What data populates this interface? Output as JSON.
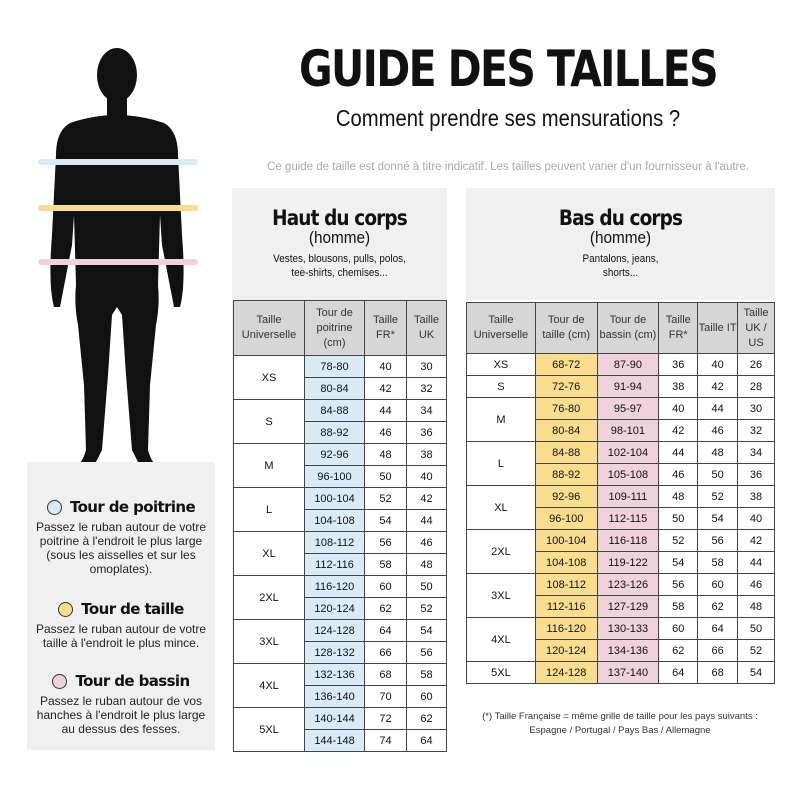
{
  "header": {
    "title": "GUIDE DES TAILLES",
    "subtitle": "Comment prendre ses mensurations ?",
    "note": "Ce guide de taille est donné à titre indicatif. Les tailles peuvent varier d'un fournisseur à l'autre."
  },
  "colors": {
    "poitrine": "#d9ebf6",
    "taille": "#fbdd8e",
    "bassin": "#f0d2dc"
  },
  "measures": [
    {
      "title": "Tour de poitrine",
      "text": "Passez le ruban autour de votre poitrine à l'endroit le plus large (sous les aisselles et sur les omoplates)."
    },
    {
      "title": "Tour de taille",
      "text": "Passez le ruban autour de votre taille à l'endroit le plus mince."
    },
    {
      "title": "Tour de bassin",
      "text": "Passez le ruban autour de vos hanches à l'endroit le plus large au dessus des fesses."
    }
  ],
  "top": {
    "title": "Haut du corps",
    "gender": "(homme)",
    "desc": "Vestes, blousons, pulls, polos, tee-shirts, chemises...",
    "columns": [
      "Taille Universelle",
      "Tour de poitrine (cm)",
      "Taille FR*",
      "Taille UK"
    ],
    "groups": [
      {
        "size": "XS",
        "rows": [
          [
            "78-80",
            "40",
            "30"
          ],
          [
            "80-84",
            "42",
            "32"
          ]
        ]
      },
      {
        "size": "S",
        "rows": [
          [
            "84-88",
            "44",
            "34"
          ],
          [
            "88-92",
            "46",
            "36"
          ]
        ]
      },
      {
        "size": "M",
        "rows": [
          [
            "92-96",
            "48",
            "38"
          ],
          [
            "96-100",
            "50",
            "40"
          ]
        ]
      },
      {
        "size": "L",
        "rows": [
          [
            "100-104",
            "52",
            "42"
          ],
          [
            "104-108",
            "54",
            "44"
          ]
        ]
      },
      {
        "size": "XL",
        "rows": [
          [
            "108-112",
            "56",
            "46"
          ],
          [
            "112-116",
            "58",
            "48"
          ]
        ]
      },
      {
        "size": "2XL",
        "rows": [
          [
            "116-120",
            "60",
            "50"
          ],
          [
            "120-124",
            "62",
            "52"
          ]
        ]
      },
      {
        "size": "3XL",
        "rows": [
          [
            "124-128",
            "64",
            "54"
          ],
          [
            "128-132",
            "66",
            "56"
          ]
        ]
      },
      {
        "size": "4XL",
        "rows": [
          [
            "132-136",
            "68",
            "58"
          ],
          [
            "136-140",
            "70",
            "60"
          ]
        ]
      },
      {
        "size": "5XL",
        "rows": [
          [
            "140-144",
            "72",
            "62"
          ],
          [
            "144-148",
            "74",
            "64"
          ]
        ]
      }
    ]
  },
  "bottom": {
    "title": "Bas du corps",
    "gender": "(homme)",
    "desc": "Pantalons, jeans, shorts...",
    "columns": [
      "Taille Universelle",
      "Tour de taille (cm)",
      "Tour de bassin (cm)",
      "Taille FR*",
      "Taille IT",
      "Taille UK / US"
    ],
    "groups": [
      {
        "size": "XS",
        "rows": [
          [
            "68-72",
            "87-90",
            "36",
            "40",
            "26"
          ]
        ]
      },
      {
        "size": "S",
        "rows": [
          [
            "72-76",
            "91-94",
            "38",
            "42",
            "28"
          ]
        ]
      },
      {
        "size": "M",
        "rows": [
          [
            "76-80",
            "95-97",
            "40",
            "44",
            "30"
          ],
          [
            "80-84",
            "98-101",
            "42",
            "46",
            "32"
          ]
        ]
      },
      {
        "size": "L",
        "rows": [
          [
            "84-88",
            "102-104",
            "44",
            "48",
            "34"
          ],
          [
            "88-92",
            "105-108",
            "46",
            "50",
            "36"
          ]
        ]
      },
      {
        "size": "XL",
        "rows": [
          [
            "92-96",
            "109-111",
            "48",
            "52",
            "38"
          ],
          [
            "96-100",
            "112-115",
            "50",
            "54",
            "40"
          ]
        ]
      },
      {
        "size": "2XL",
        "rows": [
          [
            "100-104",
            "116-118",
            "52",
            "56",
            "42"
          ],
          [
            "104-108",
            "119-122",
            "54",
            "58",
            "44"
          ]
        ]
      },
      {
        "size": "3XL",
        "rows": [
          [
            "108-112",
            "123-126",
            "56",
            "60",
            "46"
          ],
          [
            "112-116",
            "127-129",
            "58",
            "62",
            "48"
          ]
        ]
      },
      {
        "size": "4XL",
        "rows": [
          [
            "116-120",
            "130-133",
            "60",
            "64",
            "50"
          ],
          [
            "120-124",
            "134-136",
            "62",
            "66",
            "52"
          ]
        ]
      },
      {
        "size": "5XL",
        "rows": [
          [
            "124-128",
            "137-140",
            "64",
            "68",
            "54"
          ]
        ]
      }
    ]
  },
  "footnote": {
    "line1": "(*) Taille Française = même grille de taille pour les pays suivants :",
    "line2": "Espagne / Portugal / Pays Bas / Allemagne"
  }
}
